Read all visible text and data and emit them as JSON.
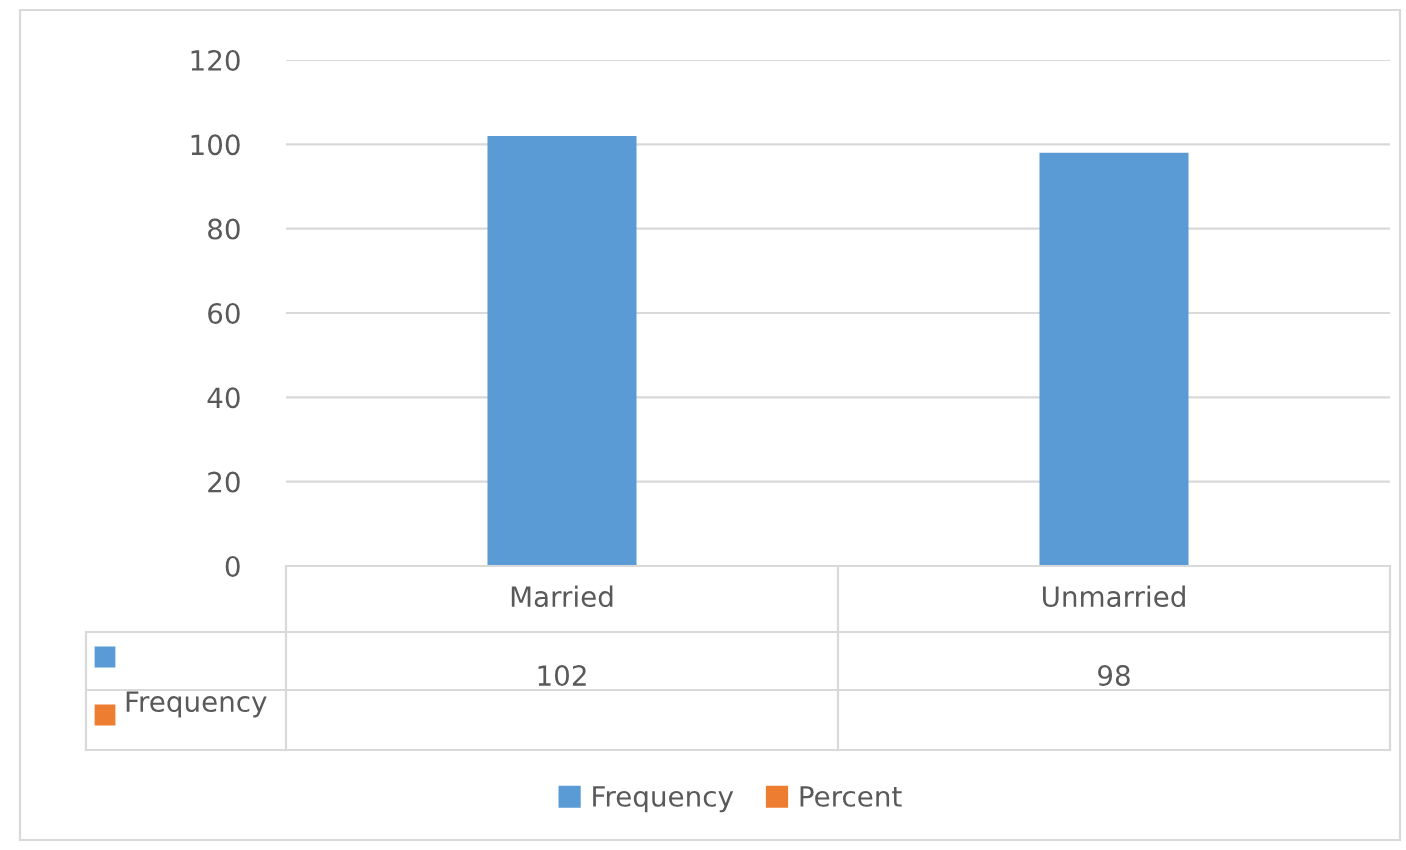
{
  "chart_data": {
    "type": "bar",
    "categories": [
      "Married",
      "Unmarried"
    ],
    "series": [
      {
        "name": "Frequency",
        "color": "#5b9bd5",
        "values": [
          102,
          98
        ]
      },
      {
        "name": "Percent",
        "color": "#ed7d31",
        "values": [
          null,
          null
        ]
      }
    ],
    "ylim": [
      0,
      120
    ],
    "yticks": [
      0,
      20,
      40,
      60,
      80,
      100,
      120
    ],
    "grid": "y",
    "legend": "bottom",
    "data_labels": true
  }
}
